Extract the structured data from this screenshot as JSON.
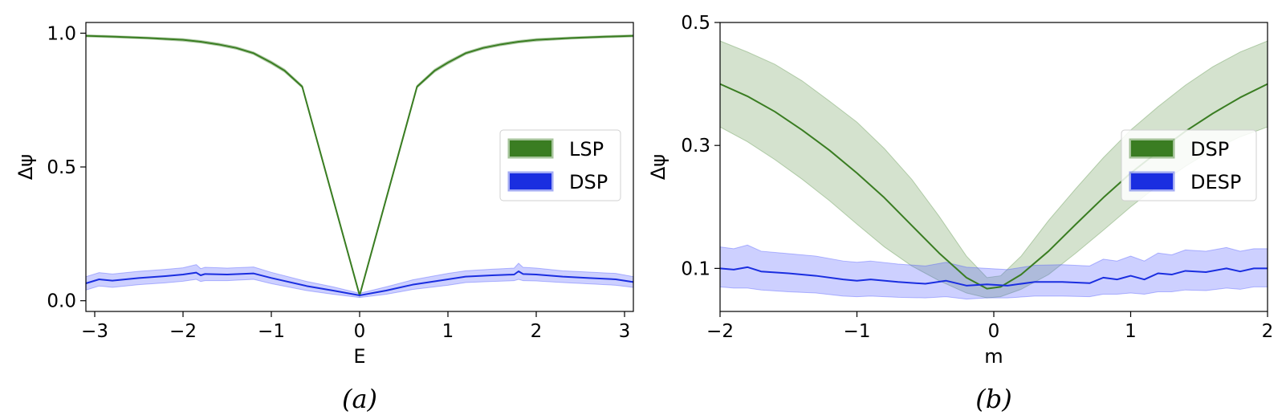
{
  "chart_data": [
    {
      "type": "line",
      "panel_label": "(a)",
      "xlabel": "E",
      "ylabel": "Δψ",
      "xlim": [
        -3.1,
        3.1
      ],
      "ylim": [
        -0.04,
        1.04
      ],
      "xticks": [
        -3,
        -2,
        -1,
        0,
        1,
        2,
        3
      ],
      "xtick_labels": [
        "−3",
        "−2",
        "−1",
        "0",
        "1",
        "2",
        "3"
      ],
      "yticks": [
        0.0,
        0.5,
        1.0
      ],
      "ytick_labels": [
        "0.0",
        "0.5",
        "1.0"
      ],
      "legend_position": "center-right",
      "series": [
        {
          "name": "LSP",
          "color": "#3a7d22",
          "band_color": "#3a7d22",
          "band_opacity": 0.22,
          "x": [
            -3.1,
            -2.8,
            -2.4,
            -2.0,
            -1.8,
            -1.6,
            -1.4,
            -1.2,
            -1.0,
            -0.85,
            -0.65,
            0.0,
            0.65,
            0.85,
            1.0,
            1.2,
            1.4,
            1.6,
            1.8,
            2.0,
            2.4,
            2.8,
            3.1
          ],
          "y": [
            0.99,
            0.987,
            0.982,
            0.975,
            0.968,
            0.958,
            0.945,
            0.925,
            0.89,
            0.86,
            0.8,
            0.02,
            0.8,
            0.86,
            0.89,
            0.925,
            0.945,
            0.958,
            0.968,
            0.975,
            0.982,
            0.987,
            0.99
          ],
          "band_low": [
            0.986,
            0.983,
            0.978,
            0.97,
            0.963,
            0.953,
            0.94,
            0.92,
            0.884,
            0.854,
            0.795,
            0.015,
            0.795,
            0.854,
            0.884,
            0.92,
            0.94,
            0.953,
            0.963,
            0.97,
            0.978,
            0.983,
            0.986
          ],
          "band_high": [
            0.994,
            0.991,
            0.986,
            0.98,
            0.973,
            0.963,
            0.95,
            0.93,
            0.896,
            0.866,
            0.805,
            0.025,
            0.805,
            0.866,
            0.896,
            0.93,
            0.95,
            0.963,
            0.973,
            0.98,
            0.986,
            0.991,
            0.994
          ]
        },
        {
          "name": "DSP",
          "color": "#1a2ee0",
          "band_color": "#4b55ff",
          "band_opacity": 0.28,
          "x": [
            -3.1,
            -2.95,
            -2.8,
            -2.5,
            -2.2,
            -2.0,
            -1.85,
            -1.8,
            -1.75,
            -1.5,
            -1.2,
            -1.0,
            -0.6,
            -0.3,
            0.0,
            0.3,
            0.6,
            1.0,
            1.2,
            1.5,
            1.75,
            1.8,
            1.85,
            2.0,
            2.3,
            2.6,
            2.9,
            3.1
          ],
          "y": [
            0.065,
            0.08,
            0.075,
            0.085,
            0.092,
            0.098,
            0.105,
            0.095,
            0.1,
            0.098,
            0.102,
            0.085,
            0.055,
            0.038,
            0.02,
            0.038,
            0.06,
            0.08,
            0.09,
            0.095,
            0.098,
            0.11,
            0.1,
            0.098,
            0.09,
            0.085,
            0.08,
            0.07
          ],
          "band_low": [
            0.04,
            0.055,
            0.05,
            0.06,
            0.067,
            0.073,
            0.08,
            0.072,
            0.075,
            0.075,
            0.08,
            0.064,
            0.038,
            0.024,
            0.012,
            0.024,
            0.042,
            0.058,
            0.068,
            0.072,
            0.075,
            0.08,
            0.075,
            0.074,
            0.068,
            0.063,
            0.058,
            0.05
          ],
          "band_high": [
            0.09,
            0.105,
            0.1,
            0.11,
            0.117,
            0.123,
            0.135,
            0.12,
            0.125,
            0.122,
            0.126,
            0.106,
            0.072,
            0.052,
            0.028,
            0.052,
            0.078,
            0.102,
            0.112,
            0.118,
            0.122,
            0.14,
            0.125,
            0.122,
            0.112,
            0.107,
            0.102,
            0.09
          ]
        }
      ]
    },
    {
      "type": "line",
      "panel_label": "(b)",
      "xlabel": "m",
      "ylabel": "Δψ",
      "xlim": [
        -2,
        2
      ],
      "ylim": [
        0.03,
        0.5
      ],
      "xticks": [
        -2,
        -1,
        0,
        1,
        2
      ],
      "xtick_labels": [
        "−2",
        "−1",
        "0",
        "1",
        "2"
      ],
      "yticks": [
        0.1,
        0.3,
        0.5
      ],
      "ytick_labels": [
        "0.1",
        "0.3",
        "0.5"
      ],
      "legend_position": "center-right",
      "series": [
        {
          "name": "DSP",
          "color": "#3a7d22",
          "band_color": "#3a7d22",
          "band_opacity": 0.22,
          "x": [
            -2.0,
            -1.8,
            -1.6,
            -1.4,
            -1.2,
            -1.0,
            -0.8,
            -0.6,
            -0.4,
            -0.2,
            -0.05,
            0.05,
            0.2,
            0.4,
            0.6,
            0.8,
            1.0,
            1.2,
            1.4,
            1.6,
            1.8,
            2.0
          ],
          "y": [
            0.4,
            0.38,
            0.355,
            0.325,
            0.292,
            0.255,
            0.215,
            0.17,
            0.125,
            0.085,
            0.067,
            0.07,
            0.09,
            0.128,
            0.172,
            0.215,
            0.255,
            0.29,
            0.323,
            0.352,
            0.378,
            0.4
          ],
          "band_low": [
            0.33,
            0.306,
            0.277,
            0.245,
            0.21,
            0.172,
            0.135,
            0.104,
            0.08,
            0.06,
            0.052,
            0.054,
            0.066,
            0.09,
            0.125,
            0.162,
            0.2,
            0.235,
            0.266,
            0.293,
            0.314,
            0.33
          ],
          "band_high": [
            0.47,
            0.452,
            0.432,
            0.405,
            0.372,
            0.338,
            0.295,
            0.245,
            0.185,
            0.12,
            0.085,
            0.088,
            0.12,
            0.178,
            0.23,
            0.28,
            0.325,
            0.363,
            0.398,
            0.428,
            0.452,
            0.47
          ]
        },
        {
          "name": "DESP",
          "color": "#1a2ee0",
          "band_color": "#4b55ff",
          "band_opacity": 0.28,
          "x": [
            -2.0,
            -1.9,
            -1.8,
            -1.7,
            -1.5,
            -1.3,
            -1.1,
            -1.0,
            -0.9,
            -0.7,
            -0.5,
            -0.35,
            -0.2,
            -0.05,
            0.1,
            0.3,
            0.5,
            0.7,
            0.8,
            0.9,
            1.0,
            1.1,
            1.2,
            1.3,
            1.4,
            1.55,
            1.7,
            1.8,
            1.9,
            2.0
          ],
          "y": [
            0.1,
            0.098,
            0.102,
            0.095,
            0.092,
            0.088,
            0.082,
            0.08,
            0.082,
            0.078,
            0.075,
            0.08,
            0.072,
            0.074,
            0.072,
            0.078,
            0.078,
            0.076,
            0.085,
            0.082,
            0.088,
            0.082,
            0.092,
            0.09,
            0.096,
            0.094,
            0.1,
            0.095,
            0.1,
            0.1
          ],
          "band_low": [
            0.07,
            0.068,
            0.068,
            0.065,
            0.062,
            0.06,
            0.055,
            0.054,
            0.055,
            0.053,
            0.052,
            0.054,
            0.05,
            0.052,
            0.052,
            0.055,
            0.055,
            0.054,
            0.058,
            0.058,
            0.06,
            0.058,
            0.062,
            0.062,
            0.065,
            0.064,
            0.068,
            0.066,
            0.07,
            0.07
          ],
          "band_high": [
            0.135,
            0.132,
            0.138,
            0.128,
            0.124,
            0.12,
            0.112,
            0.11,
            0.112,
            0.107,
            0.104,
            0.11,
            0.102,
            0.1,
            0.098,
            0.105,
            0.106,
            0.104,
            0.115,
            0.112,
            0.12,
            0.112,
            0.125,
            0.122,
            0.13,
            0.128,
            0.134,
            0.128,
            0.132,
            0.132
          ]
        }
      ]
    }
  ]
}
